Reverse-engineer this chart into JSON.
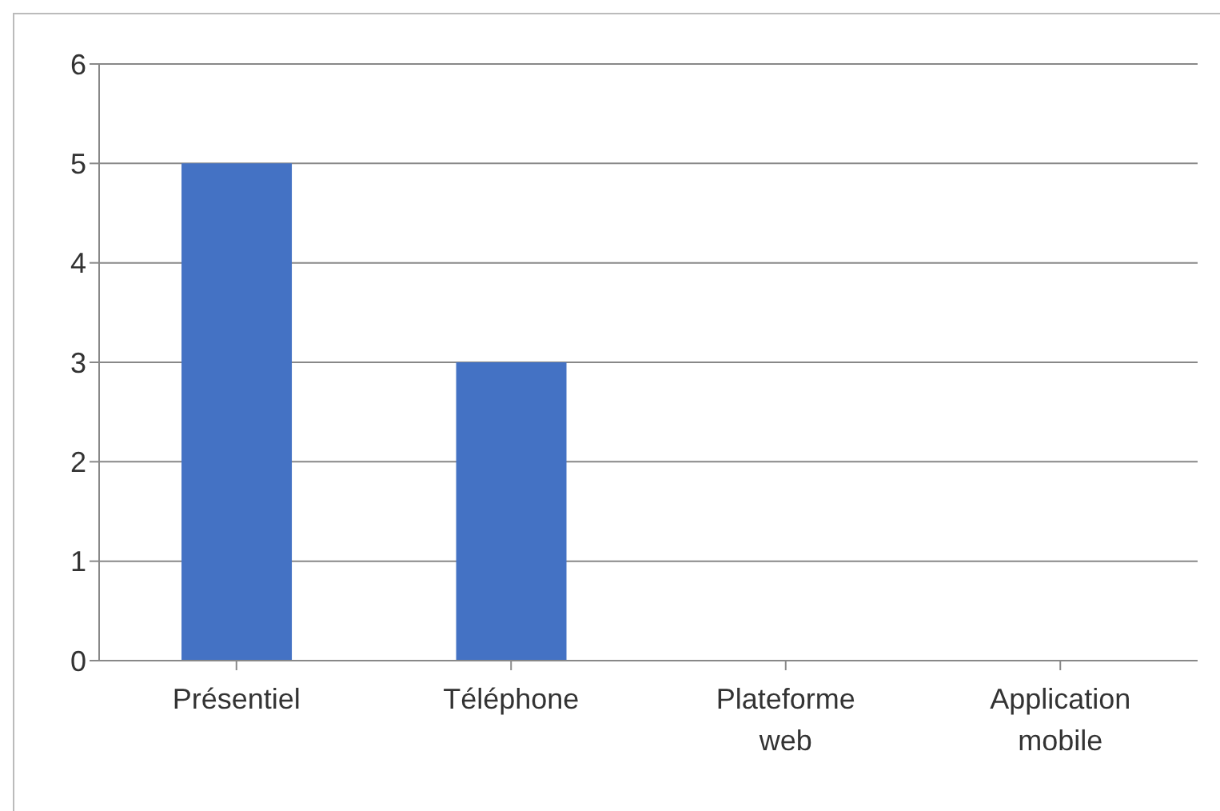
{
  "chart_data": {
    "type": "bar",
    "categories": [
      "Présentiel",
      "Téléphone",
      "Plateforme web",
      "Application mobile"
    ],
    "values": [
      5,
      3,
      0,
      0
    ],
    "color": "#4472c4",
    "ylim": [
      0,
      6
    ],
    "yticks": [
      0,
      1,
      2,
      3,
      4,
      5,
      6
    ],
    "grid": "y"
  }
}
